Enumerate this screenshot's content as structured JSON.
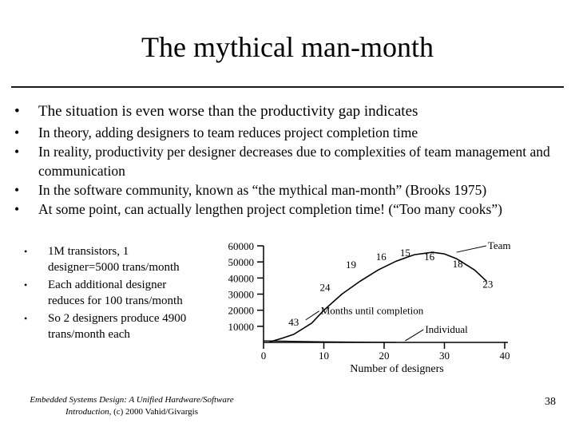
{
  "slide": {
    "title": "The mythical man-month",
    "bullets": [
      "The situation is even worse than the productivity gap indicates",
      "In theory, adding designers to team reduces project completion time",
      "In reality, productivity per designer decreases due to complexities of team management and communication",
      "In the software community, known as “the mythical man-month” (Brooks 1975)",
      "At some point, can actually lengthen project completion time! (“Too many cooks”)"
    ],
    "sub_bullets": [
      "1M transistors, 1 designer=5000 trans/month",
      "Each additional designer reduces for 100 trans/month",
      "So 2 designers produce 4900 trans/month each"
    ],
    "footer_italic": "Embedded Systems Design: A Unified Hardware/Software Introduction,",
    "footer_rest": " (c) 2000 Vahid/Givargis",
    "page_number": "38"
  },
  "chart_data": {
    "type": "line",
    "xlabel": "Number of designers",
    "x_ticks": [
      0,
      10,
      20,
      30,
      40
    ],
    "y_ticks": [
      10000,
      20000,
      30000,
      40000,
      50000,
      60000
    ],
    "xlim": [
      0,
      40
    ],
    "ylim": [
      0,
      60000
    ],
    "series": [
      {
        "name": "Team",
        "color": "#000000",
        "points": [
          {
            "x": 1,
            "y": 300
          },
          {
            "x": 3,
            "y": 2500
          },
          {
            "x": 5,
            "y": 5000
          },
          {
            "x": 8,
            "y": 12000
          },
          {
            "x": 10,
            "y": 20000
          },
          {
            "x": 13,
            "y": 30000
          },
          {
            "x": 16,
            "y": 38000
          },
          {
            "x": 19,
            "y": 45000
          },
          {
            "x": 22,
            "y": 50500
          },
          {
            "x": 25,
            "y": 54500
          },
          {
            "x": 28,
            "y": 56000
          },
          {
            "x": 30,
            "y": 55000
          },
          {
            "x": 32,
            "y": 52000
          },
          {
            "x": 35,
            "y": 45000
          },
          {
            "x": 37,
            "y": 38000
          }
        ]
      },
      {
        "name": "Individual",
        "color": "#000000",
        "points": [
          {
            "x": 0,
            "y": 1000
          },
          {
            "x": 10,
            "y": 400
          },
          {
            "x": 22,
            "y": 0
          }
        ]
      }
    ],
    "point_labels": [
      {
        "text": "43",
        "x": 5,
        "y": 10500
      },
      {
        "text": "24",
        "x": 10.2,
        "y": 32000
      },
      {
        "text": "19",
        "x": 14.5,
        "y": 46000
      },
      {
        "text": "16",
        "x": 19.5,
        "y": 51000
      },
      {
        "text": "15",
        "x": 23.5,
        "y": 53500
      },
      {
        "text": "16",
        "x": 27.5,
        "y": 51000
      },
      {
        "text": "18",
        "x": 32.2,
        "y": 46500
      },
      {
        "text": "23",
        "x": 37.2,
        "y": 34000
      }
    ],
    "annotations": [
      {
        "text": "Team",
        "x": 37.2,
        "y": 58000,
        "pointer": {
          "x": 32,
          "y": 56000
        }
      },
      {
        "text": "Months until completion",
        "x": 9.5,
        "y": 17500,
        "pointer": {
          "x": 7,
          "y": 14000
        }
      },
      {
        "text": "Individual",
        "x": 26.8,
        "y": 6000,
        "pointer": {
          "x": 23.5,
          "y": 1000
        }
      }
    ]
  }
}
